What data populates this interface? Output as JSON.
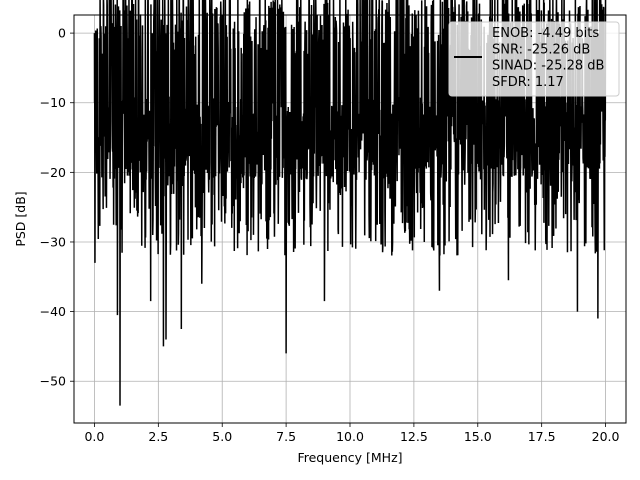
{
  "chart_data": {
    "type": "line",
    "title": "",
    "xlabel": "Frequency [MHz]",
    "ylabel": "PSD [dB]",
    "xlim": [
      -0.8,
      20.8
    ],
    "ylim": [
      -56,
      2.6
    ],
    "x_ticks": [
      0.0,
      2.5,
      5.0,
      7.5,
      10.0,
      12.5,
      15.0,
      17.5,
      20.0
    ],
    "x_tick_labels": [
      "0.0",
      "2.5",
      "5.0",
      "7.5",
      "10.0",
      "12.5",
      "15.0",
      "17.5",
      "20.0"
    ],
    "y_ticks": [
      0,
      -10,
      -20,
      -30,
      -40,
      -50
    ],
    "y_tick_labels": [
      "0",
      "−10",
      "−20",
      "−30",
      "−40",
      "−50"
    ],
    "grid": true,
    "legend_position": "top-right",
    "line_color": "#000000",
    "series": [
      {
        "x_range": [
          0.0,
          20.0
        ],
        "approx_points": 2000,
        "envelope_upper_db": -3,
        "envelope_lower_db": -35,
        "typical_median_db": -15,
        "peaks": [
          {
            "x": 0.0,
            "y": 0.0
          },
          {
            "x": 6.8,
            "y": -1.5
          },
          {
            "x": 10.0,
            "y": -2.0
          },
          {
            "x": 12.8,
            "y": -3.0
          }
        ],
        "notches": [
          {
            "x": 0.9,
            "y": -40.5
          },
          {
            "x": 1.0,
            "y": -53.5
          },
          {
            "x": 2.2,
            "y": -38.5
          },
          {
            "x": 2.7,
            "y": -45.0
          },
          {
            "x": 2.8,
            "y": -44.0
          },
          {
            "x": 3.4,
            "y": -42.5
          },
          {
            "x": 4.2,
            "y": -36.0
          },
          {
            "x": 7.5,
            "y": -46.0
          },
          {
            "x": 9.0,
            "y": -38.5
          },
          {
            "x": 13.5,
            "y": -37.0
          },
          {
            "x": 16.2,
            "y": -35.5
          },
          {
            "x": 18.9,
            "y": -40.0
          },
          {
            "x": 19.7,
            "y": -41.0
          }
        ]
      }
    ],
    "legend": [
      {
        "label": "ENOB: -4.49 bits",
        "swatch": true
      },
      {
        "label": "SNR: -25.26 dB",
        "swatch": false
      },
      {
        "label": "SINAD: -25.28 dB",
        "swatch": false
      },
      {
        "label": "SFDR: 1.17",
        "swatch": false
      }
    ]
  }
}
